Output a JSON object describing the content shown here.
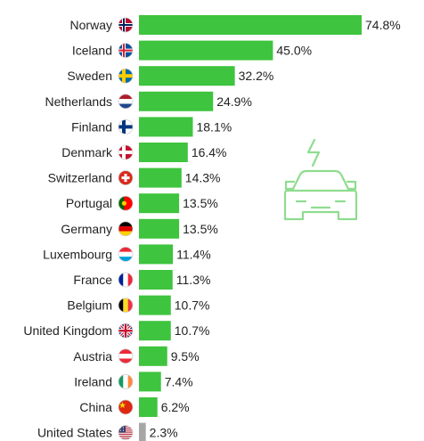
{
  "chart_data": {
    "type": "bar",
    "orientation": "horizontal",
    "title": "",
    "xlabel": "",
    "ylabel": "",
    "unit": "%",
    "grid": false,
    "legend": "none",
    "categories": [
      "Norway",
      "Iceland",
      "Sweden",
      "Netherlands",
      "Finland",
      "Denmark",
      "Switzerland",
      "Portugal",
      "Germany",
      "Luxembourg",
      "France",
      "Belgium",
      "United Kingdom",
      "Austria",
      "Ireland",
      "China",
      "United States"
    ],
    "values": [
      74.8,
      45.0,
      32.2,
      24.9,
      18.1,
      16.4,
      14.3,
      13.5,
      13.5,
      11.4,
      11.3,
      10.7,
      10.7,
      9.5,
      7.4,
      6.2,
      2.3
    ],
    "value_labels": [
      "74.8%",
      "45.0%",
      "32.2%",
      "24.9%",
      "18.1%",
      "16.4%",
      "14.3%",
      "13.5%",
      "13.5%",
      "11.4%",
      "11.3%",
      "10.7%",
      "10.7%",
      "9.5%",
      "7.4%",
      "6.2%",
      "2.3%"
    ],
    "bar_colors": [
      "#3ec43e",
      "#3ec43e",
      "#3ec43e",
      "#3ec43e",
      "#3ec43e",
      "#3ec43e",
      "#3ec43e",
      "#3ec43e",
      "#3ec43e",
      "#3ec43e",
      "#3ec43e",
      "#3ec43e",
      "#3ec43e",
      "#3ec43e",
      "#3ec43e",
      "#3ec43e",
      "#a6a6a6"
    ],
    "flag_icons": [
      "norway-flag-icon",
      "iceland-flag-icon",
      "sweden-flag-icon",
      "netherlands-flag-icon",
      "finland-flag-icon",
      "denmark-flag-icon",
      "switzerland-flag-icon",
      "portugal-flag-icon",
      "germany-flag-icon",
      "luxembourg-flag-icon",
      "france-flag-icon",
      "belgium-flag-icon",
      "united-kingdom-flag-icon",
      "austria-flag-icon",
      "ireland-flag-icon",
      "china-flag-icon",
      "united-states-flag-icon"
    ],
    "decoration_icon": "electric-car-icon",
    "colors": {
      "accent_green": "#3ec43e",
      "grey_bar": "#a6a6a6",
      "icon_green": "#8fdc8f"
    }
  }
}
